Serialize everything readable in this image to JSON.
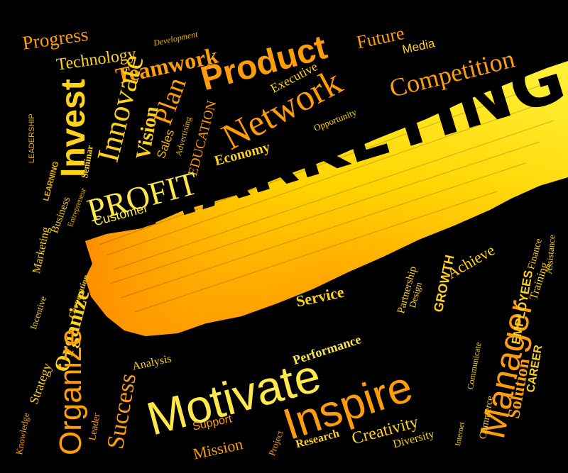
{
  "headline": "MARKETING",
  "colors": {
    "background": "#000000",
    "yellow": "#ffd21a",
    "orange": "#ff9d0a",
    "streak_light": "#fff23a",
    "streak_dark": "#ff8c00"
  },
  "words": {
    "progress": "Progress",
    "technology": "Technology",
    "development": "Development",
    "teamwork": "Teamwork",
    "product": "Product",
    "future": "Future",
    "media": "Media",
    "competition": "Competition",
    "executive": "Executive",
    "network": "Network",
    "opportunity": "Opportunity",
    "invest": "Invest",
    "innovate": "Innovate",
    "vision": "Vision",
    "plan": "Plan",
    "sales": "Sales",
    "advertising": "Advertising",
    "education": "EDUCATION",
    "economy": "Economy",
    "leadership": "LEADERSHIP",
    "seminar": "Seminar",
    "learning": "LEARNING",
    "profit": "PROFIT",
    "customer": "Customer",
    "business": "Business",
    "entrepreneur": "Entrepreneur",
    "marketing_small": "Marketing",
    "incentive": "Incentive",
    "cooperation": "Cooperation",
    "organize": "Organize",
    "strategy": "Strategy",
    "knowledge": "Knowledge",
    "success": "Success",
    "leader": "Leader",
    "analysis": "Analysis",
    "motivate": "Motivate",
    "service": "Service",
    "performance": "Performance",
    "inspire": "Inspire",
    "partnership": "Partnership",
    "design": "Design",
    "growth": "GROWTH",
    "achieve": "Achieve",
    "manager": "Manager",
    "employees": "EMPLOYEES",
    "career": "CAREER",
    "solution": "Solution",
    "training": "Training",
    "finance": "Finance",
    "assistance": "Assistance",
    "communicate": "Communicate",
    "commerce": "Commerce",
    "internet": "Internet",
    "support": "Support",
    "mission": "Mission",
    "project": "Project",
    "research": "Research",
    "creativity": "Creativity",
    "diversity": "Diversity"
  }
}
